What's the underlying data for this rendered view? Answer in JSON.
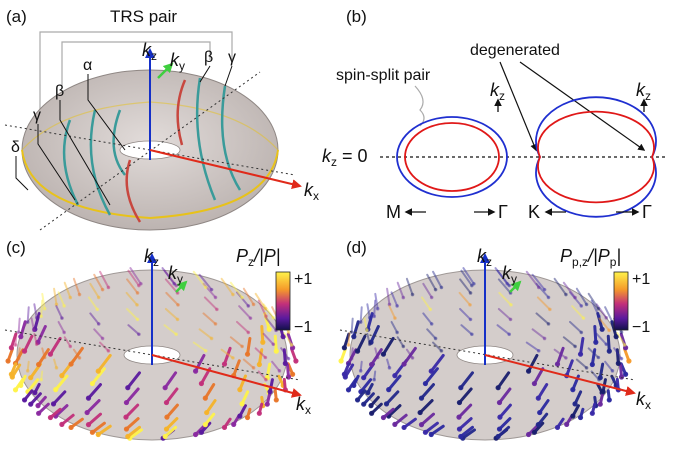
{
  "panels": {
    "a": {
      "label": "(a)",
      "trs_pair": "TRS pair",
      "bands": [
        "α",
        "β",
        "β",
        "γ",
        "γ",
        "δ"
      ],
      "axes": {
        "kz": "k",
        "kz_sub": "z",
        "ky": "k",
        "ky_sub": "y",
        "kx": "k",
        "kx_sub": "x"
      }
    },
    "b": {
      "label": "(b)",
      "spin_split": "spin-split pair",
      "degenerated": "degenerated",
      "kz_zero": "k",
      "kz_zero_sub": "z",
      "kz_zero_rest": " = 0",
      "kz_left": "k",
      "kz_left_sub": "z",
      "kz_right": "k",
      "kz_right_sub": "z",
      "left_from": "M",
      "left_to": "Γ",
      "right_from": "K",
      "right_to": "Γ"
    },
    "c": {
      "label": "(c)",
      "cbar_title_a": "P",
      "cbar_title_sub": "z",
      "cbar_title_b": "/|P|",
      "cbar_max": "+1",
      "cbar_min": "−1",
      "axes": {
        "kz": "k",
        "kz_sub": "z",
        "ky": "k",
        "ky_sub": "y",
        "kx": "k",
        "kx_sub": "x"
      }
    },
    "d": {
      "label": "(d)",
      "cbar_title_a": "P",
      "cbar_title_sub": "p,z",
      "cbar_title_b": "/|P",
      "cbar_title_sub2": "p",
      "cbar_title_c": "|",
      "cbar_max": "+1",
      "cbar_min": "−1",
      "axes": {
        "kz": "k",
        "kz_sub": "z",
        "ky": "k",
        "ky_sub": "y",
        "kx": "k",
        "kx_sub": "x"
      }
    }
  },
  "colors": {
    "torus_fill": "#cbc2bf",
    "torus_edge": "#8f8784",
    "band_teal": "#3a9b9a",
    "band_red": "#c8473f",
    "band_yellow": "#e8c21a",
    "kz_axis": "#1530c8",
    "kx_axis": "#e02a1a",
    "ky_axis": "#3fcf3f",
    "outer_loop": "#1f2fd0",
    "inner_loop": "#e01818"
  }
}
